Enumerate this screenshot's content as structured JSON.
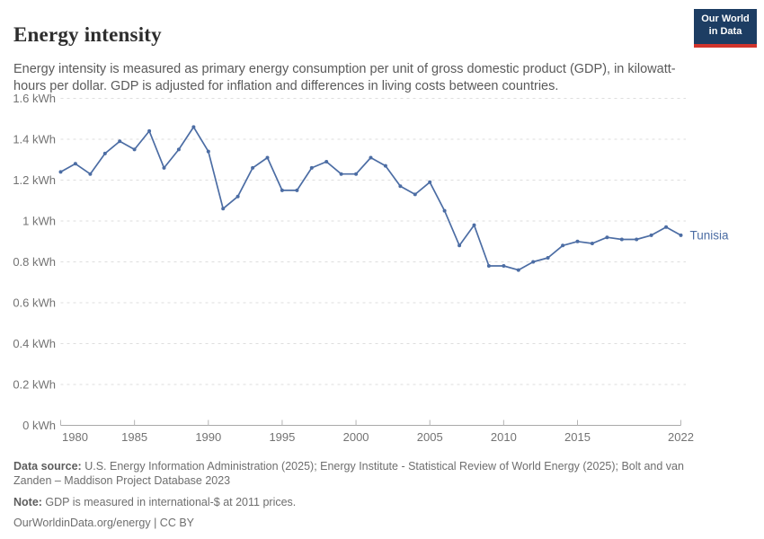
{
  "header": {
    "title": "Energy intensity",
    "subtitle": "Energy intensity is measured as primary energy consumption per unit of gross domestic product (GDP), in kilowatt-hours per dollar. GDP is adjusted for inflation and differences in living costs between countries.",
    "logo": {
      "line1": "Our World",
      "line2": "in Data"
    }
  },
  "chart_data": {
    "type": "line",
    "title": "Energy intensity",
    "ylabel": "",
    "xlabel": "",
    "unit": "kWh",
    "xlim": [
      1980,
      2022
    ],
    "ylim": [
      0,
      1.6
    ],
    "grid": "horizontal-dashed",
    "legend_position": "end-of-line-label",
    "xticks": [
      1980,
      1985,
      1990,
      1995,
      2000,
      2005,
      2010,
      2015,
      2022
    ],
    "yticks": [
      0,
      0.2,
      0.4,
      0.6,
      0.8,
      1,
      1.2,
      1.4,
      1.6
    ],
    "ytick_labels": [
      "0 kWh",
      "0.2 kWh",
      "0.4 kWh",
      "0.6 kWh",
      "0.8 kWh",
      "1 kWh",
      "1.2 kWh",
      "1.4 kWh",
      "1.6 kWh"
    ],
    "x": [
      1980,
      1981,
      1982,
      1983,
      1984,
      1985,
      1986,
      1987,
      1988,
      1989,
      1990,
      1991,
      1992,
      1993,
      1994,
      1995,
      1996,
      1997,
      1998,
      1999,
      2000,
      2001,
      2002,
      2003,
      2004,
      2005,
      2006,
      2007,
      2008,
      2009,
      2010,
      2011,
      2012,
      2013,
      2014,
      2015,
      2016,
      2017,
      2018,
      2019,
      2020,
      2021,
      2022
    ],
    "series": [
      {
        "name": "Tunisia",
        "color": "#4c6da4",
        "values": [
          1.24,
          1.28,
          1.23,
          1.33,
          1.39,
          1.35,
          1.44,
          1.26,
          1.35,
          1.46,
          1.34,
          1.06,
          1.12,
          1.26,
          1.31,
          1.15,
          1.15,
          1.26,
          1.29,
          1.23,
          1.23,
          1.31,
          1.27,
          1.17,
          1.13,
          1.19,
          1.05,
          0.88,
          0.98,
          0.78,
          0.78,
          0.76,
          0.8,
          0.82,
          0.88,
          0.9,
          0.89,
          0.92,
          0.91,
          0.91,
          0.93,
          0.97,
          0.93
        ]
      }
    ]
  },
  "footer": {
    "data_source_label": "Data source:",
    "data_source_text": " U.S. Energy Information Administration (2025); Energy Institute - Statistical Review of World Energy (2025); Bolt and van Zanden – Maddison Project Database 2023",
    "note_label": "Note:",
    "note_text": " GDP is measured in international-$ at 2011 prices.",
    "license": "OurWorldinData.org/energy | CC BY"
  },
  "colors": {
    "line": "#4c6da4",
    "grid": "#dedede",
    "axis": "#a9a9a9",
    "tick": "#b5b5b5",
    "axis_label": "#737373",
    "title": "#2d2d2d",
    "subtitle": "#5a5a5a",
    "footer": "#6e6e6e",
    "logo_bg": "#1d3d63",
    "logo_red": "#d1342c"
  }
}
